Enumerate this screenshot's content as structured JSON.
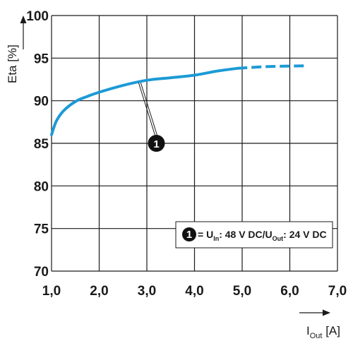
{
  "chart_data": {
    "type": "line",
    "xlabel": {
      "main": "I",
      "sub": "Out",
      "unit": " [A]"
    },
    "ylabel": "Eta [%]",
    "xlim": [
      1.0,
      7.0
    ],
    "ylim": [
      70,
      100
    ],
    "x_ticks": [
      "1,0",
      "2,0",
      "3,0",
      "4,0",
      "5,0",
      "6,0",
      "7,0"
    ],
    "y_ticks": [
      "70",
      "75",
      "80",
      "85",
      "90",
      "95",
      "100"
    ],
    "grid": true,
    "series": [
      {
        "marker": "1",
        "color": "#1c9ad6",
        "solid": {
          "x": [
            1.0,
            1.1,
            1.25,
            1.5,
            1.75,
            2.0,
            2.5,
            3.0,
            3.5,
            4.0,
            4.5,
            4.9
          ],
          "y": [
            86.0,
            87.6,
            88.8,
            89.9,
            90.5,
            91.0,
            91.8,
            92.4,
            92.7,
            93.0,
            93.5,
            93.8
          ]
        },
        "dashed": {
          "x": [
            4.9,
            5.5,
            6.3
          ],
          "y": [
            93.8,
            94.0,
            94.1
          ]
        }
      }
    ],
    "annotation": {
      "marker": "1",
      "point": {
        "x": 2.85,
        "y": 92.1
      },
      "label": {
        "x": 3.2,
        "y": 85.0
      }
    },
    "legend": {
      "position": "bottom-right",
      "marker": "1",
      "eq": " = U",
      "in_sub": "In",
      "mid": ": 48 V DC/U",
      "out_sub": "Out",
      "tail": ": 24 V DC"
    }
  }
}
